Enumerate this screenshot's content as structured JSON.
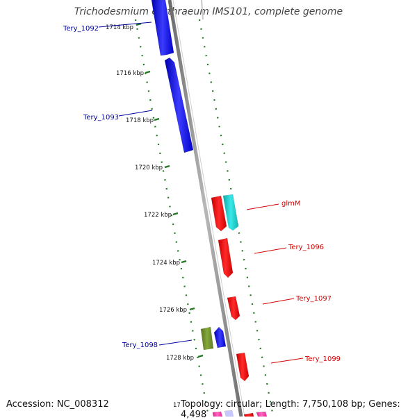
{
  "title": "Trichodesmium erythraeum IMS101, complete genome",
  "footer": {
    "accession": "Accession: NC_008312",
    "topology": "Topology: circular; Length: 7,750,108 bp; Genes: 4,498",
    "cut_tick": "17"
  },
  "ticks": [
    "1714 kbp",
    "1716 kbp",
    "1718 kbp",
    "1720 kbp",
    "1722 kbp",
    "1724 kbp",
    "1726 kbp",
    "1728 kbp"
  ],
  "genes": [
    {
      "label": "Tery_1092",
      "color": "#0000a0",
      "strand": "left"
    },
    {
      "label": "Tery_1093",
      "color": "#0000a0",
      "strand": "left"
    },
    {
      "label": "glmM",
      "color": "#d40000",
      "strand": "right"
    },
    {
      "label": "Tery_1096",
      "color": "#d40000",
      "strand": "right"
    },
    {
      "label": "Tery_1097",
      "color": "#d40000",
      "strand": "right"
    },
    {
      "label": "Tery_1098",
      "color": "#0000a0",
      "strand": "left"
    },
    {
      "label": "Tery_1099",
      "color": "#d40000",
      "strand": "right"
    }
  ],
  "colors": {
    "backbone": "#8c8c8c",
    "dots": "#1f7a1f",
    "blue_feature": "#0a0ae6",
    "red_feature": "#ee0000",
    "cyan_feature": "#19c8c8",
    "olive_feature": "#6b8c2a",
    "pink_feature": "#ff33aa"
  }
}
